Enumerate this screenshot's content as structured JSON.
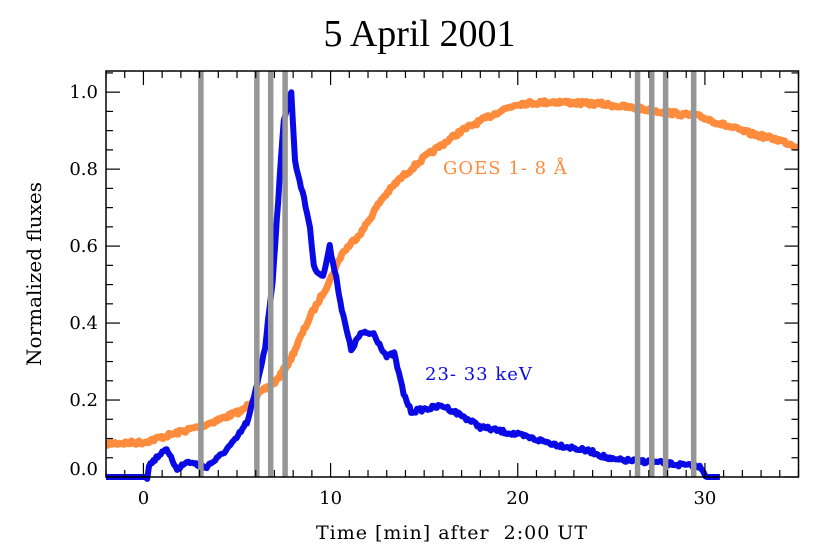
{
  "chart_data": {
    "type": "line",
    "title": "5 April 2001",
    "xlabel": "Time [min] after  2:00 UT",
    "ylabel": "Normalized fluxes",
    "xlim": [
      -2,
      35
    ],
    "ylim": [
      0,
      1.055
    ],
    "xticks": [
      0,
      10,
      20,
      30
    ],
    "xtick_labels": [
      "0",
      "10",
      "20",
      "30"
    ],
    "yticks": [
      0,
      0.2,
      0.4,
      0.6,
      0.8,
      1.0
    ],
    "ytick_labels": [
      "0.0",
      "0.2",
      "0.4",
      "0.6",
      "0.8",
      "1.0"
    ],
    "grid": false,
    "vertical_lines": {
      "color": "#969696",
      "x": [
        3.07,
        6.06,
        6.8,
        7.57,
        26.4,
        27.16,
        27.9,
        29.4
      ]
    },
    "series": [
      {
        "name": "GOES 1- 8 Å",
        "color": "#ff8c3c",
        "x": [
          -2,
          0,
          3.2,
          5.3,
          6.2,
          7.1,
          7.8,
          8.9,
          9.95,
          10.6,
          11.7,
          12.7,
          13.6,
          15,
          17,
          19,
          20,
          22,
          24,
          24.4,
          26,
          29.8,
          31,
          32.4,
          34,
          35
        ],
        "y": [
          0.087,
          0.09,
          0.134,
          0.173,
          0.217,
          0.25,
          0.3,
          0.416,
          0.51,
          0.58,
          0.64,
          0.72,
          0.77,
          0.83,
          0.9,
          0.95,
          0.97,
          0.975,
          0.97,
          0.97,
          0.96,
          0.936,
          0.915,
          0.893,
          0.875,
          0.858
        ]
      },
      {
        "name": "23- 33 keV",
        "color": "#0a0ae6",
        "x": [
          -2,
          0.2,
          0.3,
          1.16,
          1.8,
          2.4,
          3.3,
          4.0,
          4.9,
          5.6,
          6.0,
          6.5,
          6.9,
          7.2,
          7.5,
          7.9,
          8.1,
          8.5,
          8.9,
          9.1,
          9.6,
          9.95,
          10.3,
          10.6,
          11.1,
          11.6,
          12.3,
          13.0,
          13.4,
          13.9,
          14.3,
          16,
          17,
          18,
          20,
          22,
          24,
          25,
          27,
          29,
          29.8,
          30.1,
          30.8
        ],
        "y": [
          0,
          0,
          0.03,
          0.074,
          0.022,
          0.04,
          0.025,
          0.05,
          0.095,
          0.148,
          0.225,
          0.338,
          0.51,
          0.72,
          0.93,
          1.0,
          0.82,
          0.74,
          0.65,
          0.546,
          0.52,
          0.598,
          0.52,
          0.434,
          0.33,
          0.373,
          0.373,
          0.312,
          0.32,
          0.217,
          0.17,
          0.185,
          0.16,
          0.13,
          0.11,
          0.085,
          0.065,
          0.045,
          0.04,
          0.03,
          0.025,
          0.0,
          0.0
        ]
      }
    ]
  }
}
